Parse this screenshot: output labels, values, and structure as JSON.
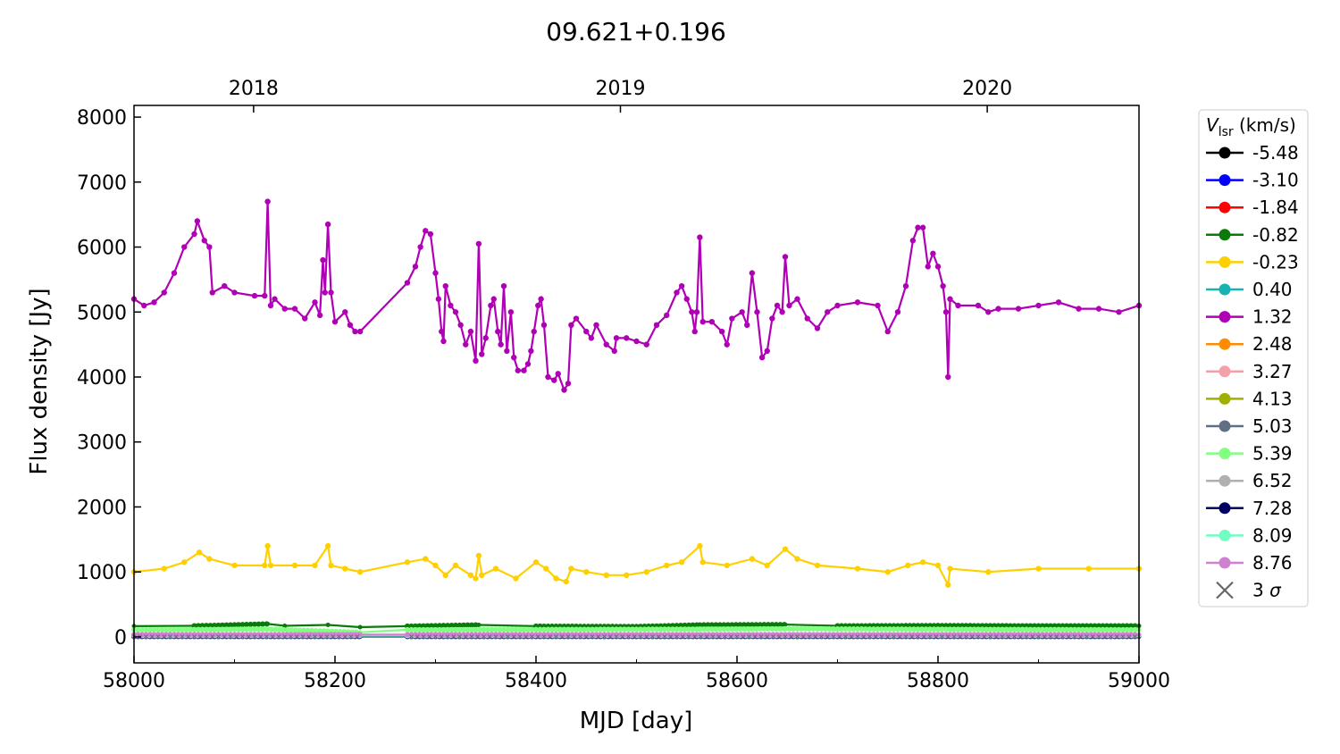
{
  "chart_data": {
    "type": "line",
    "title": "09.621+0.196",
    "xlabel": "MJD [day]",
    "ylabel": "Flux density [Jy]",
    "xlim": [
      58000,
      59000
    ],
    "ylim": [
      -400,
      8180
    ],
    "xticks": [
      58000,
      58200,
      58400,
      58600,
      58800,
      59000
    ],
    "yticks": [
      0,
      1000,
      2000,
      3000,
      4000,
      5000,
      6000,
      7000,
      8000
    ],
    "top_axis": {
      "ticks": [
        {
          "label": "2018",
          "mjd": 58119
        },
        {
          "label": "2019",
          "mjd": 58484
        },
        {
          "label": "2020",
          "mjd": 58849
        }
      ]
    },
    "grid": false,
    "legend": {
      "title_main": "V",
      "title_sub": "lsr",
      "title_unit": " (km/s)",
      "placement": "outside-right"
    },
    "series": [
      {
        "name": "-5.48",
        "color": "#000000",
        "points": [
          [
            58000,
            5
          ],
          [
            58225,
            5
          ],
          [
            58272,
            5
          ],
          [
            59000,
            5
          ]
        ]
      },
      {
        "name": "-3.10",
        "color": "#0000ff",
        "points": [
          [
            58000,
            8
          ],
          [
            58225,
            8
          ],
          [
            58272,
            8
          ],
          [
            59000,
            8
          ]
        ]
      },
      {
        "name": "-1.84",
        "color": "#ff0000",
        "points": [
          [
            58000,
            12
          ],
          [
            58225,
            12
          ],
          [
            58272,
            12
          ],
          [
            59000,
            12
          ]
        ]
      },
      {
        "name": "-0.82",
        "color": "#0a7a0a",
        "points": [
          [
            58000,
            165
          ],
          [
            58060,
            170
          ],
          [
            58133,
            200
          ],
          [
            58150,
            170
          ],
          [
            58193,
            185
          ],
          [
            58225,
            150
          ],
          [
            58272,
            165
          ],
          [
            58343,
            185
          ],
          [
            58400,
            165
          ],
          [
            58500,
            160
          ],
          [
            58563,
            185
          ],
          [
            58648,
            190
          ],
          [
            58700,
            170
          ],
          [
            58800,
            175
          ],
          [
            58900,
            170
          ],
          [
            59000,
            170
          ]
        ]
      },
      {
        "name": "-0.23",
        "color": "#ffd000",
        "points": [
          [
            58000,
            1000
          ],
          [
            58030,
            1050
          ],
          [
            58050,
            1150
          ],
          [
            58065,
            1300
          ],
          [
            58075,
            1200
          ],
          [
            58100,
            1100
          ],
          [
            58130,
            1100
          ],
          [
            58133,
            1400
          ],
          [
            58136,
            1100
          ],
          [
            58160,
            1100
          ],
          [
            58180,
            1100
          ],
          [
            58193,
            1400
          ],
          [
            58196,
            1100
          ],
          [
            58210,
            1050
          ],
          [
            58225,
            1000
          ],
          [
            58272,
            1150
          ],
          [
            58290,
            1200
          ],
          [
            58300,
            1100
          ],
          [
            58310,
            950
          ],
          [
            58320,
            1100
          ],
          [
            58335,
            950
          ],
          [
            58340,
            900
          ],
          [
            58343,
            1250
          ],
          [
            58346,
            950
          ],
          [
            58360,
            1050
          ],
          [
            58380,
            900
          ],
          [
            58400,
            1150
          ],
          [
            58410,
            1050
          ],
          [
            58420,
            900
          ],
          [
            58430,
            850
          ],
          [
            58435,
            1050
          ],
          [
            58450,
            1000
          ],
          [
            58470,
            950
          ],
          [
            58490,
            950
          ],
          [
            58510,
            1000
          ],
          [
            58530,
            1100
          ],
          [
            58545,
            1150
          ],
          [
            58563,
            1400
          ],
          [
            58566,
            1150
          ],
          [
            58590,
            1100
          ],
          [
            58615,
            1200
          ],
          [
            58630,
            1100
          ],
          [
            58648,
            1350
          ],
          [
            58660,
            1200
          ],
          [
            58680,
            1100
          ],
          [
            58720,
            1050
          ],
          [
            58750,
            1000
          ],
          [
            58770,
            1100
          ],
          [
            58785,
            1150
          ],
          [
            58800,
            1100
          ],
          [
            58810,
            800
          ],
          [
            58812,
            1050
          ],
          [
            58850,
            1000
          ],
          [
            58900,
            1050
          ],
          [
            58950,
            1050
          ],
          [
            59000,
            1050
          ]
        ]
      },
      {
        "name": "0.40",
        "color": "#17b3b0",
        "points": [
          [
            58000,
            20
          ],
          [
            58225,
            20
          ],
          [
            58272,
            20
          ],
          [
            59000,
            20
          ]
        ]
      },
      {
        "name": "1.32",
        "color": "#b000b5",
        "points": [
          [
            58000,
            5200
          ],
          [
            58010,
            5100
          ],
          [
            58020,
            5150
          ],
          [
            58030,
            5300
          ],
          [
            58040,
            5600
          ],
          [
            58050,
            6000
          ],
          [
            58060,
            6200
          ],
          [
            58063,
            6400
          ],
          [
            58070,
            6100
          ],
          [
            58075,
            6000
          ],
          [
            58078,
            5300
          ],
          [
            58090,
            5400
          ],
          [
            58100,
            5300
          ],
          [
            58120,
            5250
          ],
          [
            58130,
            5250
          ],
          [
            58133,
            6700
          ],
          [
            58136,
            5100
          ],
          [
            58140,
            5200
          ],
          [
            58150,
            5050
          ],
          [
            58160,
            5050
          ],
          [
            58170,
            4900
          ],
          [
            58180,
            5150
          ],
          [
            58185,
            4950
          ],
          [
            58188,
            5800
          ],
          [
            58190,
            5300
          ],
          [
            58193,
            6350
          ],
          [
            58196,
            5300
          ],
          [
            58200,
            4850
          ],
          [
            58210,
            5000
          ],
          [
            58215,
            4800
          ],
          [
            58220,
            4700
          ],
          [
            58225,
            4700
          ],
          [
            58272,
            5450
          ],
          [
            58280,
            5700
          ],
          [
            58285,
            6000
          ],
          [
            58290,
            6250
          ],
          [
            58295,
            6200
          ],
          [
            58300,
            5600
          ],
          [
            58303,
            5200
          ],
          [
            58306,
            4700
          ],
          [
            58308,
            4550
          ],
          [
            58310,
            5400
          ],
          [
            58315,
            5100
          ],
          [
            58320,
            5000
          ],
          [
            58325,
            4800
          ],
          [
            58330,
            4500
          ],
          [
            58335,
            4700
          ],
          [
            58340,
            4250
          ],
          [
            58343,
            6050
          ],
          [
            58346,
            4350
          ],
          [
            58350,
            4600
          ],
          [
            58355,
            5100
          ],
          [
            58358,
            5200
          ],
          [
            58362,
            4700
          ],
          [
            58365,
            4500
          ],
          [
            58368,
            5400
          ],
          [
            58371,
            4400
          ],
          [
            58375,
            5000
          ],
          [
            58378,
            4300
          ],
          [
            58382,
            4100
          ],
          [
            58388,
            4100
          ],
          [
            58392,
            4200
          ],
          [
            58395,
            4400
          ],
          [
            58398,
            4700
          ],
          [
            58402,
            5100
          ],
          [
            58405,
            5200
          ],
          [
            58408,
            4800
          ],
          [
            58412,
            4000
          ],
          [
            58418,
            3950
          ],
          [
            58422,
            4050
          ],
          [
            58428,
            3800
          ],
          [
            58432,
            3900
          ],
          [
            58435,
            4800
          ],
          [
            58440,
            4900
          ],
          [
            58450,
            4700
          ],
          [
            58455,
            4600
          ],
          [
            58460,
            4800
          ],
          [
            58470,
            4500
          ],
          [
            58478,
            4400
          ],
          [
            58480,
            4600
          ],
          [
            58490,
            4600
          ],
          [
            58500,
            4550
          ],
          [
            58510,
            4500
          ],
          [
            58520,
            4800
          ],
          [
            58530,
            4950
          ],
          [
            58540,
            5300
          ],
          [
            58545,
            5400
          ],
          [
            58550,
            5200
          ],
          [
            58555,
            5000
          ],
          [
            58558,
            4700
          ],
          [
            58560,
            5000
          ],
          [
            58563,
            6150
          ],
          [
            58566,
            4850
          ],
          [
            58575,
            4850
          ],
          [
            58585,
            4700
          ],
          [
            58590,
            4500
          ],
          [
            58595,
            4900
          ],
          [
            58605,
            5000
          ],
          [
            58610,
            4800
          ],
          [
            58615,
            5600
          ],
          [
            58620,
            5000
          ],
          [
            58625,
            4300
          ],
          [
            58630,
            4400
          ],
          [
            58635,
            4900
          ],
          [
            58640,
            5100
          ],
          [
            58645,
            5000
          ],
          [
            58648,
            5850
          ],
          [
            58652,
            5100
          ],
          [
            58660,
            5200
          ],
          [
            58670,
            4900
          ],
          [
            58680,
            4750
          ],
          [
            58690,
            5000
          ],
          [
            58700,
            5100
          ],
          [
            58720,
            5150
          ],
          [
            58740,
            5100
          ],
          [
            58750,
            4700
          ],
          [
            58760,
            5000
          ],
          [
            58768,
            5400
          ],
          [
            58775,
            6100
          ],
          [
            58780,
            6300
          ],
          [
            58785,
            6300
          ],
          [
            58790,
            5700
          ],
          [
            58795,
            5900
          ],
          [
            58800,
            5700
          ],
          [
            58805,
            5400
          ],
          [
            58808,
            5000
          ],
          [
            58810,
            4000
          ],
          [
            58812,
            5200
          ],
          [
            58820,
            5100
          ],
          [
            58840,
            5100
          ],
          [
            58850,
            5000
          ],
          [
            58860,
            5050
          ],
          [
            58880,
            5050
          ],
          [
            58900,
            5100
          ],
          [
            58920,
            5150
          ],
          [
            58940,
            5050
          ],
          [
            58960,
            5050
          ],
          [
            58980,
            5000
          ],
          [
            59000,
            5100
          ]
        ]
      },
      {
        "name": "2.48",
        "color": "#ff8c00",
        "points": [
          [
            58000,
            15
          ],
          [
            58225,
            15
          ],
          [
            58272,
            15
          ],
          [
            59000,
            15
          ]
        ]
      },
      {
        "name": "3.27",
        "color": "#f4a0a8",
        "points": [
          [
            58000,
            25
          ],
          [
            58225,
            25
          ],
          [
            58272,
            25
          ],
          [
            59000,
            25
          ]
        ]
      },
      {
        "name": "4.13",
        "color": "#a0b000",
        "points": [
          [
            58000,
            18
          ],
          [
            58225,
            18
          ],
          [
            58272,
            18
          ],
          [
            59000,
            18
          ]
        ]
      },
      {
        "name": "5.03",
        "color": "#5f6f85",
        "points": [
          [
            58000,
            10
          ],
          [
            58225,
            10
          ],
          [
            58272,
            10
          ],
          [
            59000,
            10
          ]
        ]
      },
      {
        "name": "5.39",
        "color": "#80ff80",
        "points": [
          [
            58000,
            110
          ],
          [
            58133,
            120
          ],
          [
            58225,
            70
          ],
          [
            58272,
            110
          ],
          [
            58563,
            120
          ],
          [
            58648,
            125
          ],
          [
            59000,
            110
          ]
        ]
      },
      {
        "name": "6.52",
        "color": "#b0b0b0",
        "points": [
          [
            58000,
            8
          ],
          [
            58225,
            8
          ],
          [
            58272,
            8
          ],
          [
            59000,
            8
          ]
        ]
      },
      {
        "name": "7.28",
        "color": "#000060",
        "points": [
          [
            58000,
            10
          ],
          [
            58225,
            10
          ],
          [
            58272,
            10
          ],
          [
            59000,
            10
          ]
        ]
      },
      {
        "name": "8.09",
        "color": "#70ffc0",
        "points": [
          [
            58000,
            20
          ],
          [
            58225,
            20
          ],
          [
            58272,
            20
          ],
          [
            59000,
            20
          ]
        ]
      },
      {
        "name": "8.76",
        "color": "#d080d0",
        "points": [
          [
            58000,
            35
          ],
          [
            58225,
            35
          ],
          [
            58272,
            35
          ],
          [
            59000,
            35
          ]
        ]
      }
    ],
    "sigma": {
      "name": "3 σ",
      "name_text": "3 ",
      "name_symbol": "σ",
      "color": "#666666",
      "value": 5
    }
  }
}
